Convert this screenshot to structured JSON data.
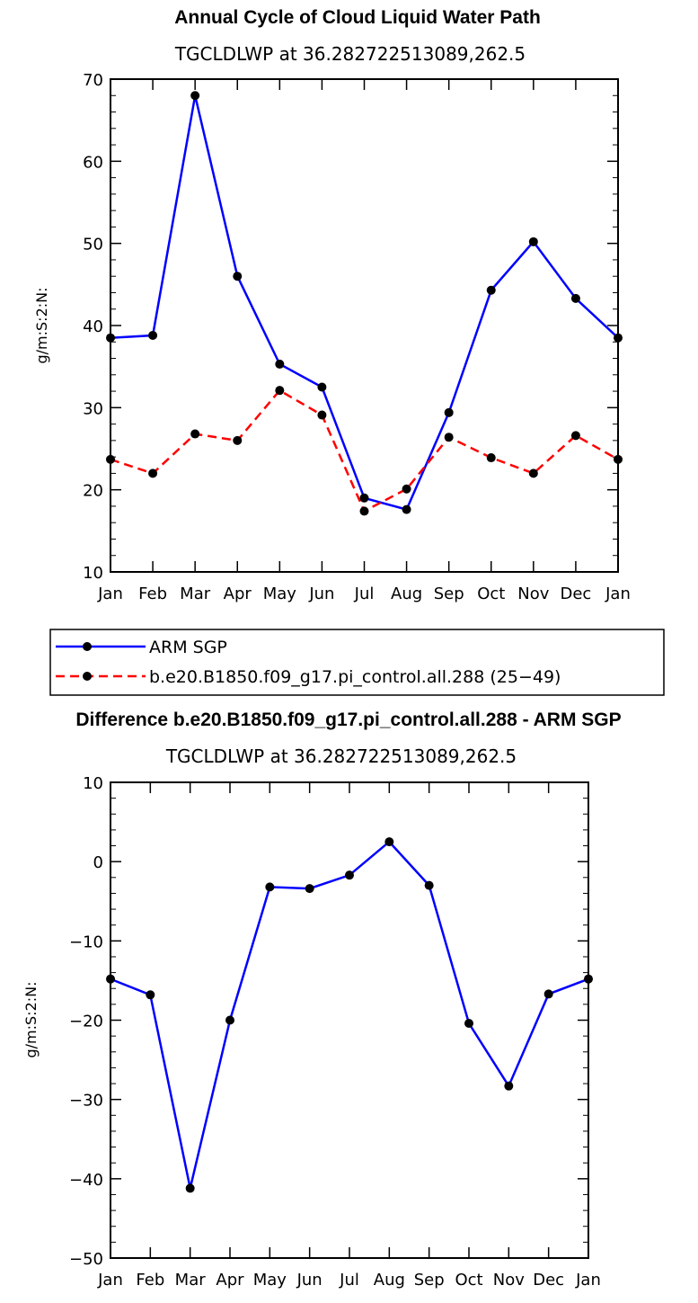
{
  "chart_data": [
    {
      "type": "line",
      "title": "Annual Cycle of Cloud Liquid Water Path",
      "subtitle": "TGCLDLWP  at  36.282722513089,262.5",
      "xlabel": "",
      "ylabel": "g/m:S:2:N:",
      "categories": [
        "Jan",
        "Feb",
        "Mar",
        "Apr",
        "May",
        "Jun",
        "Jul",
        "Aug",
        "Sep",
        "Oct",
        "Nov",
        "Dec",
        "Jan"
      ],
      "ylim": [
        10,
        70
      ],
      "ytick_step": 10,
      "series": [
        {
          "name": "ARM SGP",
          "color": "#0000ff",
          "dash": "solid",
          "values": [
            38.5,
            38.8,
            68.0,
            46.0,
            35.3,
            32.5,
            19.0,
            17.6,
            29.4,
            44.3,
            50.2,
            43.3,
            38.5
          ]
        },
        {
          "name": "b.e20.B1850.f09_g17.pi_control.all.288 (25−49)",
          "color": "#ff0000",
          "dash": "dashed",
          "values": [
            23.7,
            22.0,
            26.8,
            26.0,
            32.1,
            29.1,
            17.4,
            20.1,
            26.4,
            23.9,
            22.0,
            26.6,
            23.7
          ]
        }
      ],
      "legend_position": "below"
    },
    {
      "type": "line",
      "title": "Difference b.e20.B1850.f09_g17.pi_control.all.288 - ARM SGP",
      "subtitle": "TGCLDLWP  at  36.282722513089,262.5",
      "xlabel": "",
      "ylabel": "g/m:S:2:N:",
      "categories": [
        "Jan",
        "Feb",
        "Mar",
        "Apr",
        "May",
        "Jun",
        "Jul",
        "Aug",
        "Sep",
        "Oct",
        "Nov",
        "Dec",
        "Jan"
      ],
      "ylim": [
        -50,
        10
      ],
      "ytick_step": 10,
      "series": [
        {
          "name": "Difference",
          "color": "#0000ff",
          "dash": "solid",
          "values": [
            -14.8,
            -16.8,
            -41.2,
            -20.0,
            -3.2,
            -3.4,
            -1.7,
            2.5,
            -3.0,
            -20.4,
            -28.3,
            -16.7,
            -14.8
          ]
        }
      ]
    }
  ]
}
